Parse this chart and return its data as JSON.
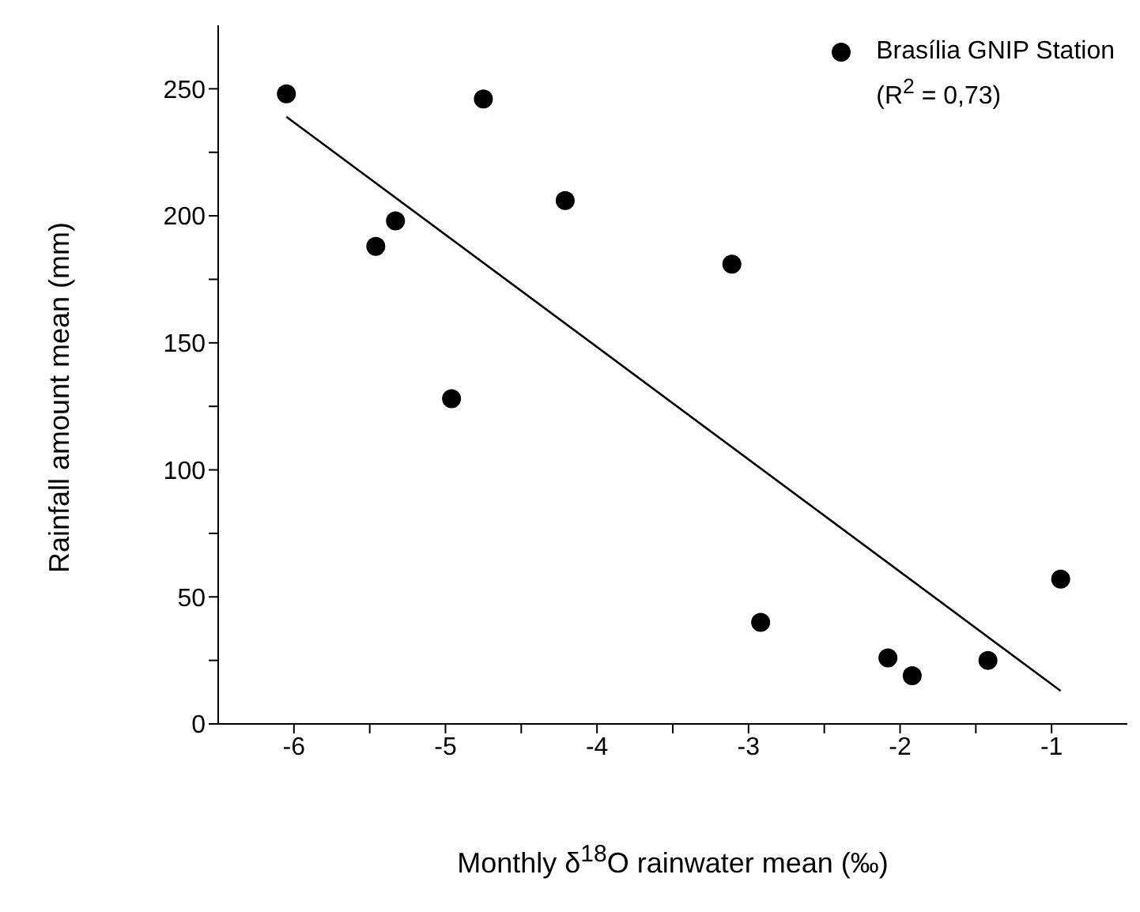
{
  "chart_data": {
    "type": "scatter",
    "xlabel": "Monthly δ$^{18}$O rainwater mean (‰)",
    "ylabel": "Rainfall amount mean (mm)",
    "xlim": [
      -6.5,
      -0.5
    ],
    "xticks": [
      -6,
      {
        "value": -5.5,
        "label": null
      },
      -5,
      {
        "value": -4.5,
        "label": null
      },
      -4,
      {
        "value": -3.5,
        "label": null
      },
      -3,
      {
        "value": -2.5,
        "label": null
      },
      -2,
      {
        "value": -1.5,
        "label": null
      },
      -1
    ],
    "ylim": [
      0,
      275
    ],
    "yticks": [
      0,
      {
        "value": 25,
        "label": null
      },
      50,
      {
        "value": 75,
        "label": null
      },
      100,
      {
        "value": 125,
        "label": null
      },
      150,
      {
        "value": 175,
        "label": null
      },
      200,
      {
        "value": 225,
        "label": null
      },
      250
    ],
    "grid": false,
    "legend": "top right",
    "annotations": [
      "(R$^{2}$ = 0,73)"
    ],
    "series": [
      {
        "name": "Brasília GNIP Station",
        "color": "#000000",
        "marker": "circle",
        "x": [
          -6.05,
          -4.75,
          -4.21,
          -5.33,
          -5.46,
          -4.96,
          -3.11,
          -2.92,
          -2.08,
          -1.92,
          -1.42,
          -0.94
        ],
        "values": [
          248,
          246,
          206,
          198,
          188,
          128,
          181,
          40,
          26,
          19,
          25,
          57
        ]
      },
      {
        "type": "line",
        "color": "#000000",
        "marker": "none",
        "x": [
          -6.05,
          -0.94
        ],
        "values": [
          239,
          13
        ]
      }
    ]
  }
}
